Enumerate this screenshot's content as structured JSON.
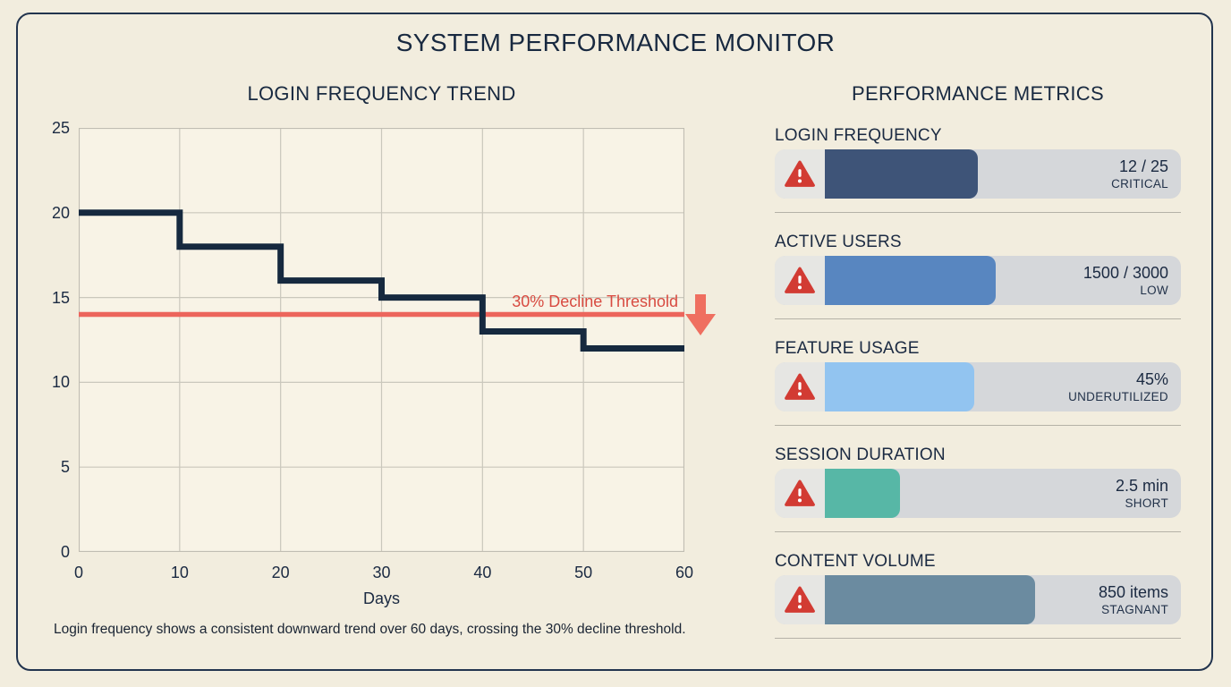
{
  "header": {
    "title": "SYSTEM PERFORMANCE MONITOR"
  },
  "chart": {
    "caption": "Login frequency shows a consistent downward trend over 60 days, crossing the 30% decline threshold."
  },
  "chart_data": {
    "type": "line",
    "subtype": "step",
    "title": "LOGIN FREQUENCY TREND",
    "xlabel": "Days",
    "ylabel": "",
    "xlim": [
      0,
      60
    ],
    "ylim": [
      0,
      25
    ],
    "x_ticks": [
      0,
      10,
      20,
      30,
      40,
      50,
      60
    ],
    "y_ticks": [
      0,
      5,
      10,
      15,
      20,
      25
    ],
    "grid": true,
    "plot_bg": "#f8f3e6",
    "grid_color": "#cac7bc",
    "border_color": "#c0bdb2",
    "series": [
      {
        "name": "Login frequency",
        "color": "#16293f",
        "step_segments": [
          {
            "from": 0,
            "to": 10,
            "value": 20
          },
          {
            "from": 10,
            "to": 20,
            "value": 18
          },
          {
            "from": 20,
            "to": 30,
            "value": 16
          },
          {
            "from": 30,
            "to": 40,
            "value": 15
          },
          {
            "from": 40,
            "to": 50,
            "value": 13
          },
          {
            "from": 50,
            "to": 60,
            "value": 12
          }
        ]
      }
    ],
    "threshold": {
      "value": 14,
      "label": "30% Decline Threshold",
      "line_color": "#ec655c",
      "label_color": "#d84b41",
      "arrow_color": "#ef6f60"
    }
  },
  "metrics": {
    "title": "PERFORMANCE METRICS",
    "items": [
      {
        "label": "LOGIN FREQUENCY",
        "value": "12 / 25",
        "status": "CRITICAL",
        "fill_pct": 43,
        "fill_color": "#3e5478",
        "icon": "warning-triangle-icon"
      },
      {
        "label": "ACTIVE USERS",
        "value": "1500 / 3000",
        "status": "LOW",
        "fill_pct": 48,
        "fill_color": "#5886c0",
        "icon": "warning-triangle-icon"
      },
      {
        "label": "FEATURE USAGE",
        "value": "45%",
        "status": "UNDERUTILIZED",
        "fill_pct": 42,
        "fill_color": "#92c4f0",
        "icon": "warning-triangle-icon"
      },
      {
        "label": "SESSION DURATION",
        "value": "2.5 min",
        "status": "SHORT",
        "fill_pct": 21,
        "fill_color": "#57b7a6",
        "icon": "warning-triangle-icon"
      },
      {
        "label": "CONTENT VOLUME",
        "value": "850 items",
        "status": "STAGNANT",
        "fill_pct": 59,
        "fill_color": "#6b8ba0",
        "icon": "warning-triangle-icon"
      }
    ],
    "warning_color": "#d23b33"
  },
  "colors": {
    "page_bg": "#f2edde",
    "panel_border": "#22344e",
    "track_bg": "#d5d7da",
    "icon_cell_bg": "#e6e6e3",
    "text_navy": "#1b2a42"
  }
}
